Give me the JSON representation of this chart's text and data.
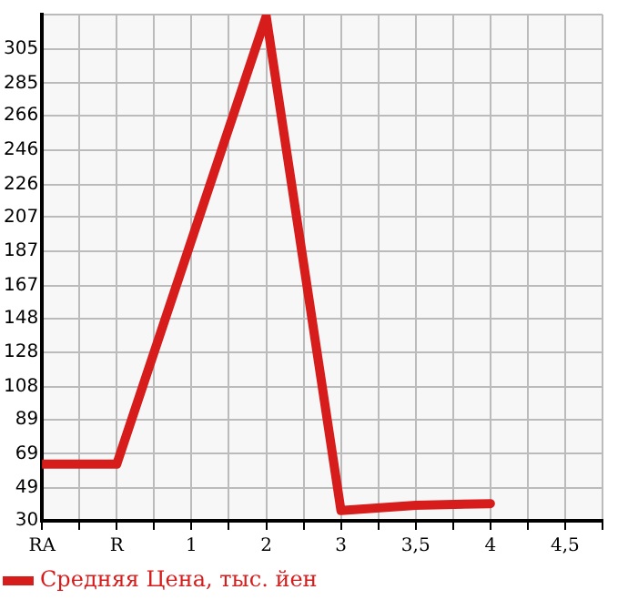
{
  "chart_data": {
    "type": "line",
    "categories": [
      "RA",
      "R",
      "1",
      "2",
      "3",
      "3,5",
      "4",
      "4,5"
    ],
    "series": [
      {
        "name": "Средняя Цена, тыс. йен",
        "color": "#d71c1c",
        "values": [
          63,
          63,
          null,
          324,
          36,
          39,
          40,
          null
        ]
      }
    ],
    "ylim": [
      30,
      325
    ],
    "yticks": [
      30,
      49,
      69,
      89,
      108,
      128,
      148,
      167,
      187,
      207,
      226,
      246,
      266,
      285,
      305,
      {
        "value": 325,
        "label": null
      }
    ],
    "grid": true,
    "legend": "bottom",
    "marker": "none",
    "line_style": "solid"
  }
}
